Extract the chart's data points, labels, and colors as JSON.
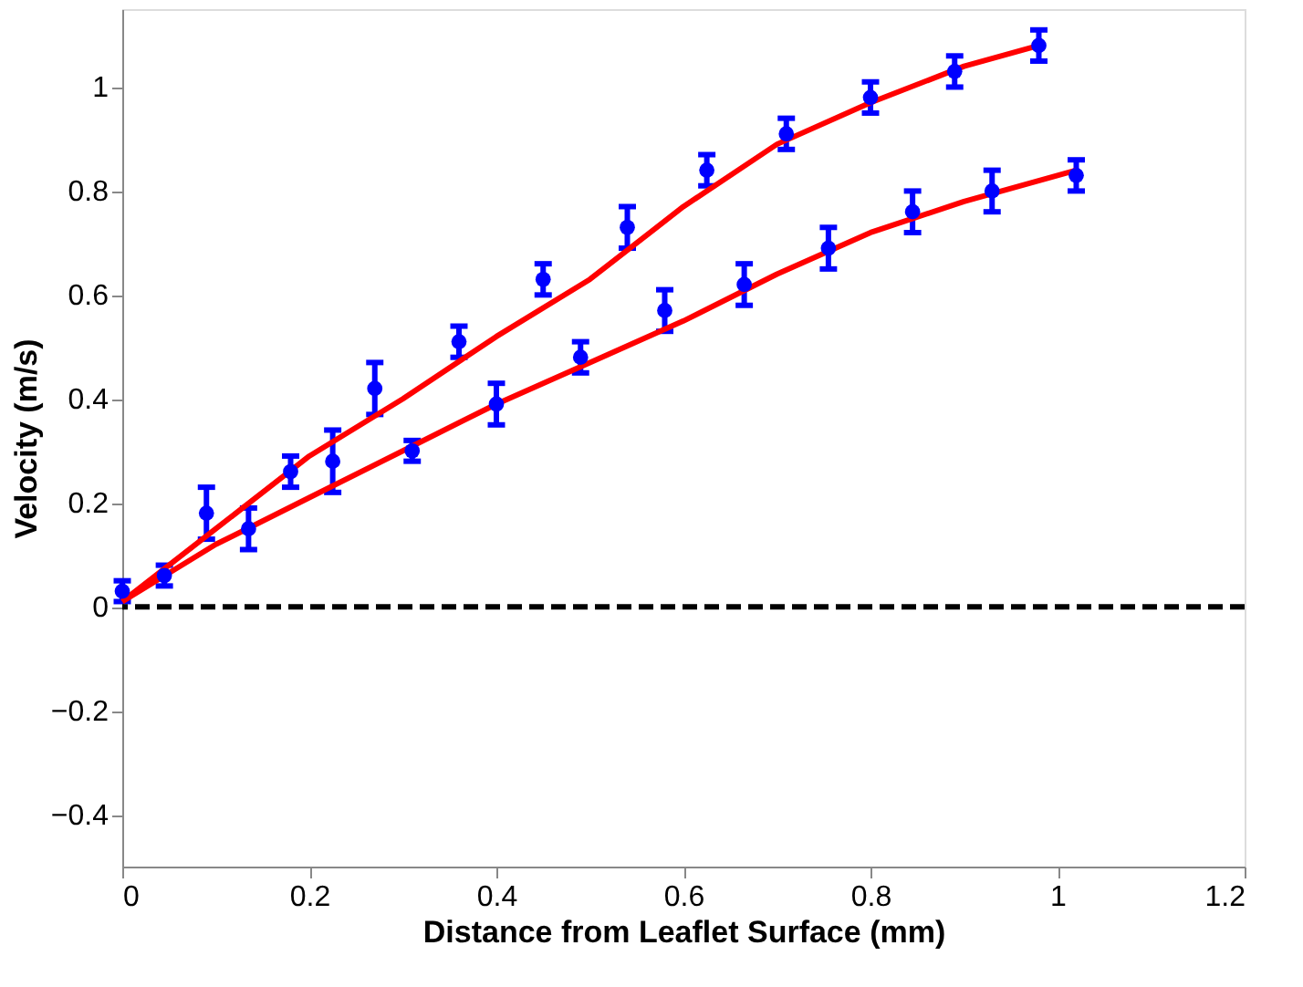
{
  "chart_data": {
    "type": "scatter",
    "xlabel": "Distance from Leaflet Surface (mm)",
    "ylabel": "Velocity (m/s)",
    "xlim": [
      0,
      1.2
    ],
    "xticks": [
      0,
      0.2,
      0.4,
      0.6,
      0.8,
      1,
      1.2
    ],
    "ylim": [
      -0.5,
      1.15
    ],
    "yticks": [
      -0.4,
      -0.2,
      0,
      0.2,
      0.4,
      0.6,
      0.8,
      1
    ],
    "grid": false,
    "marker": "circle",
    "series": [
      {
        "color": "#0000ff",
        "x": [
          0,
          0.09,
          0.18,
          0.27,
          0.36,
          0.45,
          0.54,
          0.625,
          0.71,
          0.8,
          0.89,
          0.98
        ],
        "values": [
          0.03,
          0.18,
          0.26,
          0.42,
          0.51,
          0.63,
          0.73,
          0.84,
          0.91,
          0.98,
          1.03,
          1.08
        ],
        "errors": [
          0.02,
          0.05,
          0.03,
          0.05,
          0.03,
          0.03,
          0.04,
          0.03,
          0.03,
          0.03,
          0.03,
          0.03
        ]
      },
      {
        "color": "#0000ff",
        "x": [
          0.045,
          0.135,
          0.225,
          0.31,
          0.4,
          0.49,
          0.58,
          0.665,
          0.755,
          0.845,
          0.93,
          1.02
        ],
        "values": [
          0.06,
          0.15,
          0.28,
          0.3,
          0.39,
          0.48,
          0.57,
          0.62,
          0.69,
          0.76,
          0.8,
          0.83
        ],
        "errors": [
          0.02,
          0.04,
          0.06,
          0.02,
          0.04,
          0.03,
          0.04,
          0.04,
          0.04,
          0.04,
          0.04,
          0.03
        ]
      },
      {
        "type": "line",
        "color": "#ff0000",
        "marker": "none",
        "line_style": "solid",
        "x": [
          0,
          0.1,
          0.2,
          0.3,
          0.4,
          0.5,
          0.6,
          0.7,
          0.8,
          0.9,
          0.98
        ],
        "values": [
          0.01,
          0.15,
          0.29,
          0.4,
          0.52,
          0.63,
          0.77,
          0.89,
          0.97,
          1.04,
          1.08
        ]
      },
      {
        "type": "line",
        "color": "#ff0000",
        "marker": "none",
        "line_style": "solid",
        "x": [
          0,
          0.1,
          0.2,
          0.3,
          0.4,
          0.5,
          0.6,
          0.7,
          0.8,
          0.9,
          1.02
        ],
        "values": [
          0.01,
          0.12,
          0.21,
          0.3,
          0.39,
          0.47,
          0.55,
          0.64,
          0.72,
          0.78,
          0.84
        ]
      }
    ],
    "ref_lines": [
      {
        "axis": "y",
        "value": 0,
        "color": "#000000",
        "line_style": "dashed"
      }
    ]
  }
}
